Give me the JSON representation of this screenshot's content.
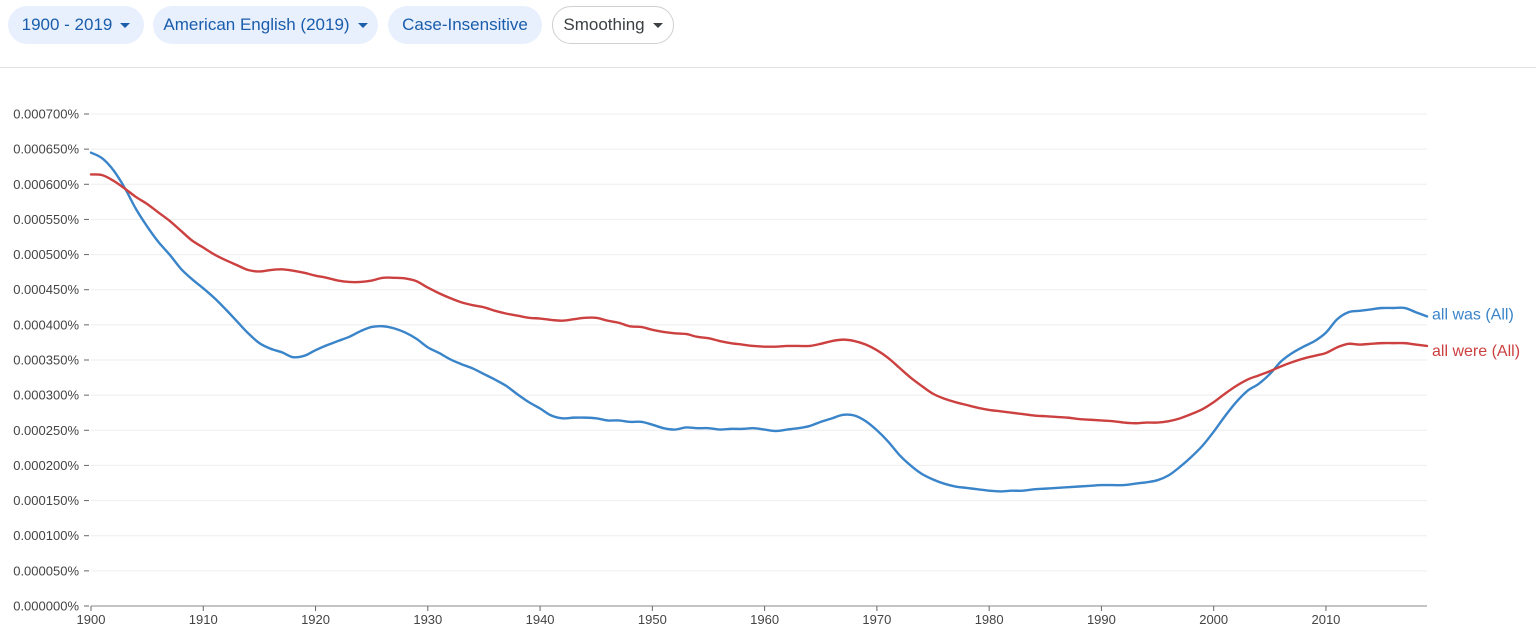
{
  "toolbar": {
    "range_label": "1900 - 2019",
    "corpus_label": "American English (2019)",
    "case_label": "Case-Insensitive",
    "smoothing_label": "Smoothing",
    "filled_color": "#e8f0fe",
    "filled_text_color": "#1a5dab"
  },
  "chart_data": {
    "type": "line",
    "title": "",
    "xlabel": "",
    "ylabel": "",
    "xlim": [
      1900,
      2019
    ],
    "ylim": [
      0,
      0.0007
    ],
    "y_ticks": [
      "0.000700%",
      "0.000650%",
      "0.000600%",
      "0.000550%",
      "0.000500%",
      "0.000450%",
      "0.000400%",
      "0.000350%",
      "0.000300%",
      "0.000250%",
      "0.000200%",
      "0.000150%",
      "0.000100%",
      "0.000050%",
      "0.000000%"
    ],
    "y_tick_values": [
      0.0007,
      0.00065,
      0.0006,
      0.00055,
      0.0005,
      0.00045,
      0.0004,
      0.00035,
      0.0003,
      0.00025,
      0.0002,
      0.00015,
      0.0001,
      5e-05,
      0
    ],
    "x_ticks": [
      "1900",
      "1910",
      "1920",
      "1930",
      "1940",
      "1950",
      "1960",
      "1970",
      "1980",
      "1990",
      "2000",
      "2010"
    ],
    "x_tick_values": [
      1900,
      1910,
      1920,
      1930,
      1940,
      1950,
      1960,
      1970,
      1980,
      1990,
      2000,
      2010
    ],
    "grid": true,
    "series": [
      {
        "name": "all was (All)",
        "color": "#3a84c9",
        "points": [
          [
            1900,
            0.000645
          ],
          [
            1901,
            0.000637
          ],
          [
            1902,
            0.00062
          ],
          [
            1903,
            0.000595
          ],
          [
            1904,
            0.000565
          ],
          [
            1905,
            0.00054
          ],
          [
            1906,
            0.000518
          ],
          [
            1907,
            0.0005
          ],
          [
            1908,
            0.00048
          ],
          [
            1909,
            0.000465
          ],
          [
            1910,
            0.000452
          ],
          [
            1911,
            0.000438
          ],
          [
            1912,
            0.000422
          ],
          [
            1913,
            0.000405
          ],
          [
            1914,
            0.000388
          ],
          [
            1915,
            0.000374
          ],
          [
            1916,
            0.000366
          ],
          [
            1917,
            0.000361
          ],
          [
            1918,
            0.000354
          ],
          [
            1919,
            0.000356
          ],
          [
            1920,
            0.000364
          ],
          [
            1921,
            0.000371
          ],
          [
            1922,
            0.000377
          ],
          [
            1923,
            0.000383
          ],
          [
            1924,
            0.000391
          ],
          [
            1925,
            0.000397
          ],
          [
            1926,
            0.000398
          ],
          [
            1927,
            0.000395
          ],
          [
            1928,
            0.000389
          ],
          [
            1929,
            0.00038
          ],
          [
            1930,
            0.000368
          ],
          [
            1931,
            0.00036
          ],
          [
            1932,
            0.000351
          ],
          [
            1933,
            0.000344
          ],
          [
            1934,
            0.000338
          ],
          [
            1935,
            0.00033
          ],
          [
            1936,
            0.000322
          ],
          [
            1937,
            0.000313
          ],
          [
            1938,
            0.000301
          ],
          [
            1939,
            0.00029
          ],
          [
            1940,
            0.000281
          ],
          [
            1941,
            0.000271
          ],
          [
            1942,
            0.000267
          ],
          [
            1943,
            0.000268
          ],
          [
            1944,
            0.000268
          ],
          [
            1945,
            0.000267
          ],
          [
            1946,
            0.000264
          ],
          [
            1947,
            0.000264
          ],
          [
            1948,
            0.000262
          ],
          [
            1949,
            0.000262
          ],
          [
            1950,
            0.000258
          ],
          [
            1951,
            0.000253
          ],
          [
            1952,
            0.000251
          ],
          [
            1953,
            0.000254
          ],
          [
            1954,
            0.000253
          ],
          [
            1955,
            0.000253
          ],
          [
            1956,
            0.000251
          ],
          [
            1957,
            0.000252
          ],
          [
            1958,
            0.000252
          ],
          [
            1959,
            0.000253
          ],
          [
            1960,
            0.000251
          ],
          [
            1961,
            0.000249
          ],
          [
            1962,
            0.000251
          ],
          [
            1963,
            0.000253
          ],
          [
            1964,
            0.000256
          ],
          [
            1965,
            0.000262
          ],
          [
            1966,
            0.000267
          ],
          [
            1967,
            0.000272
          ],
          [
            1968,
            0.000271
          ],
          [
            1969,
            0.000263
          ],
          [
            1970,
            0.00025
          ],
          [
            1971,
            0.000234
          ],
          [
            1972,
            0.000215
          ],
          [
            1973,
            0.0002
          ],
          [
            1974,
            0.000188
          ],
          [
            1975,
            0.00018
          ],
          [
            1976,
            0.000174
          ],
          [
            1977,
            0.00017
          ],
          [
            1978,
            0.000168
          ],
          [
            1979,
            0.000166
          ],
          [
            1980,
            0.000164
          ],
          [
            1981,
            0.000163
          ],
          [
            1982,
            0.000164
          ],
          [
            1983,
            0.000164
          ],
          [
            1984,
            0.000166
          ],
          [
            1985,
            0.000167
          ],
          [
            1986,
            0.000168
          ],
          [
            1987,
            0.000169
          ],
          [
            1988,
            0.00017
          ],
          [
            1989,
            0.000171
          ],
          [
            1990,
            0.000172
          ],
          [
            1991,
            0.000172
          ],
          [
            1992,
            0.000172
          ],
          [
            1993,
            0.000174
          ],
          [
            1994,
            0.000176
          ],
          [
            1995,
            0.000179
          ],
          [
            1996,
            0.000186
          ],
          [
            1997,
            0.000198
          ],
          [
            1998,
            0.000212
          ],
          [
            1999,
            0.000228
          ],
          [
            2000,
            0.000248
          ],
          [
            2001,
            0.00027
          ],
          [
            2002,
            0.00029
          ],
          [
            2003,
            0.000306
          ],
          [
            2004,
            0.000316
          ],
          [
            2005,
            0.00033
          ],
          [
            2006,
            0.000348
          ],
          [
            2007,
            0.00036
          ],
          [
            2008,
            0.000369
          ],
          [
            2009,
            0.000377
          ],
          [
            2010,
            0.000389
          ],
          [
            2011,
            0.000408
          ],
          [
            2012,
            0.000418
          ],
          [
            2013,
            0.00042
          ],
          [
            2014,
            0.000422
          ],
          [
            2015,
            0.000424
          ],
          [
            2016,
            0.000424
          ],
          [
            2017,
            0.000424
          ],
          [
            2018,
            0.000418
          ],
          [
            2019,
            0.000412
          ]
        ]
      },
      {
        "name": "all were (All)",
        "color": "#cc4040",
        "points": [
          [
            1900,
            0.000614
          ],
          [
            1901,
            0.000613
          ],
          [
            1902,
            0.000605
          ],
          [
            1903,
            0.000594
          ],
          [
            1904,
            0.000582
          ],
          [
            1905,
            0.000572
          ],
          [
            1906,
            0.00056
          ],
          [
            1907,
            0.000548
          ],
          [
            1908,
            0.000534
          ],
          [
            1909,
            0.00052
          ],
          [
            1910,
            0.00051
          ],
          [
            1911,
            0.0005
          ],
          [
            1912,
            0.000492
          ],
          [
            1913,
            0.000485
          ],
          [
            1914,
            0.000478
          ],
          [
            1915,
            0.000476
          ],
          [
            1916,
            0.000478
          ],
          [
            1917,
            0.000479
          ],
          [
            1918,
            0.000477
          ],
          [
            1919,
            0.000474
          ],
          [
            1920,
            0.00047
          ],
          [
            1921,
            0.000467
          ],
          [
            1922,
            0.000463
          ],
          [
            1923,
            0.000461
          ],
          [
            1924,
            0.000461
          ],
          [
            1925,
            0.000463
          ],
          [
            1926,
            0.000467
          ],
          [
            1927,
            0.000467
          ],
          [
            1928,
            0.000466
          ],
          [
            1929,
            0.000462
          ],
          [
            1930,
            0.000453
          ],
          [
            1931,
            0.000445
          ],
          [
            1932,
            0.000438
          ],
          [
            1933,
            0.000432
          ],
          [
            1934,
            0.000428
          ],
          [
            1935,
            0.000425
          ],
          [
            1936,
            0.00042
          ],
          [
            1937,
            0.000416
          ],
          [
            1938,
            0.000413
          ],
          [
            1939,
            0.00041
          ],
          [
            1940,
            0.000409
          ],
          [
            1941,
            0.000407
          ],
          [
            1942,
            0.000406
          ],
          [
            1943,
            0.000408
          ],
          [
            1944,
            0.00041
          ],
          [
            1945,
            0.00041
          ],
          [
            1946,
            0.000406
          ],
          [
            1947,
            0.000403
          ],
          [
            1948,
            0.000398
          ],
          [
            1949,
            0.000397
          ],
          [
            1950,
            0.000393
          ],
          [
            1951,
            0.00039
          ],
          [
            1952,
            0.000388
          ],
          [
            1953,
            0.000387
          ],
          [
            1954,
            0.000383
          ],
          [
            1955,
            0.000381
          ],
          [
            1956,
            0.000377
          ],
          [
            1957,
            0.000374
          ],
          [
            1958,
            0.000372
          ],
          [
            1959,
            0.00037
          ],
          [
            1960,
            0.000369
          ],
          [
            1961,
            0.000369
          ],
          [
            1962,
            0.00037
          ],
          [
            1963,
            0.00037
          ],
          [
            1964,
            0.00037
          ],
          [
            1965,
            0.000373
          ],
          [
            1966,
            0.000377
          ],
          [
            1967,
            0.000379
          ],
          [
            1968,
            0.000377
          ],
          [
            1969,
            0.000372
          ],
          [
            1970,
            0.000364
          ],
          [
            1971,
            0.000353
          ],
          [
            1972,
            0.000339
          ],
          [
            1973,
            0.000325
          ],
          [
            1974,
            0.000313
          ],
          [
            1975,
            0.000302
          ],
          [
            1976,
            0.000295
          ],
          [
            1977,
            0.00029
          ],
          [
            1978,
            0.000286
          ],
          [
            1979,
            0.000282
          ],
          [
            1980,
            0.000279
          ],
          [
            1981,
            0.000277
          ],
          [
            1982,
            0.000275
          ],
          [
            1983,
            0.000273
          ],
          [
            1984,
            0.000271
          ],
          [
            1985,
            0.00027
          ],
          [
            1986,
            0.000269
          ],
          [
            1987,
            0.000268
          ],
          [
            1988,
            0.000266
          ],
          [
            1989,
            0.000265
          ],
          [
            1990,
            0.000264
          ],
          [
            1991,
            0.000263
          ],
          [
            1992,
            0.000261
          ],
          [
            1993,
            0.00026
          ],
          [
            1994,
            0.000261
          ],
          [
            1995,
            0.000261
          ],
          [
            1996,
            0.000263
          ],
          [
            1997,
            0.000267
          ],
          [
            1998,
            0.000273
          ],
          [
            1999,
            0.00028
          ],
          [
            2000,
            0.00029
          ],
          [
            2001,
            0.000302
          ],
          [
            2002,
            0.000313
          ],
          [
            2003,
            0.000322
          ],
          [
            2004,
            0.000328
          ],
          [
            2005,
            0.000334
          ],
          [
            2006,
            0.000341
          ],
          [
            2007,
            0.000347
          ],
          [
            2008,
            0.000352
          ],
          [
            2009,
            0.000356
          ],
          [
            2010,
            0.00036
          ],
          [
            2011,
            0.000368
          ],
          [
            2012,
            0.000373
          ],
          [
            2013,
            0.000372
          ],
          [
            2014,
            0.000373
          ],
          [
            2015,
            0.000374
          ],
          [
            2016,
            0.000374
          ],
          [
            2017,
            0.000374
          ],
          [
            2018,
            0.000372
          ],
          [
            2019,
            0.00037
          ]
        ]
      }
    ]
  }
}
